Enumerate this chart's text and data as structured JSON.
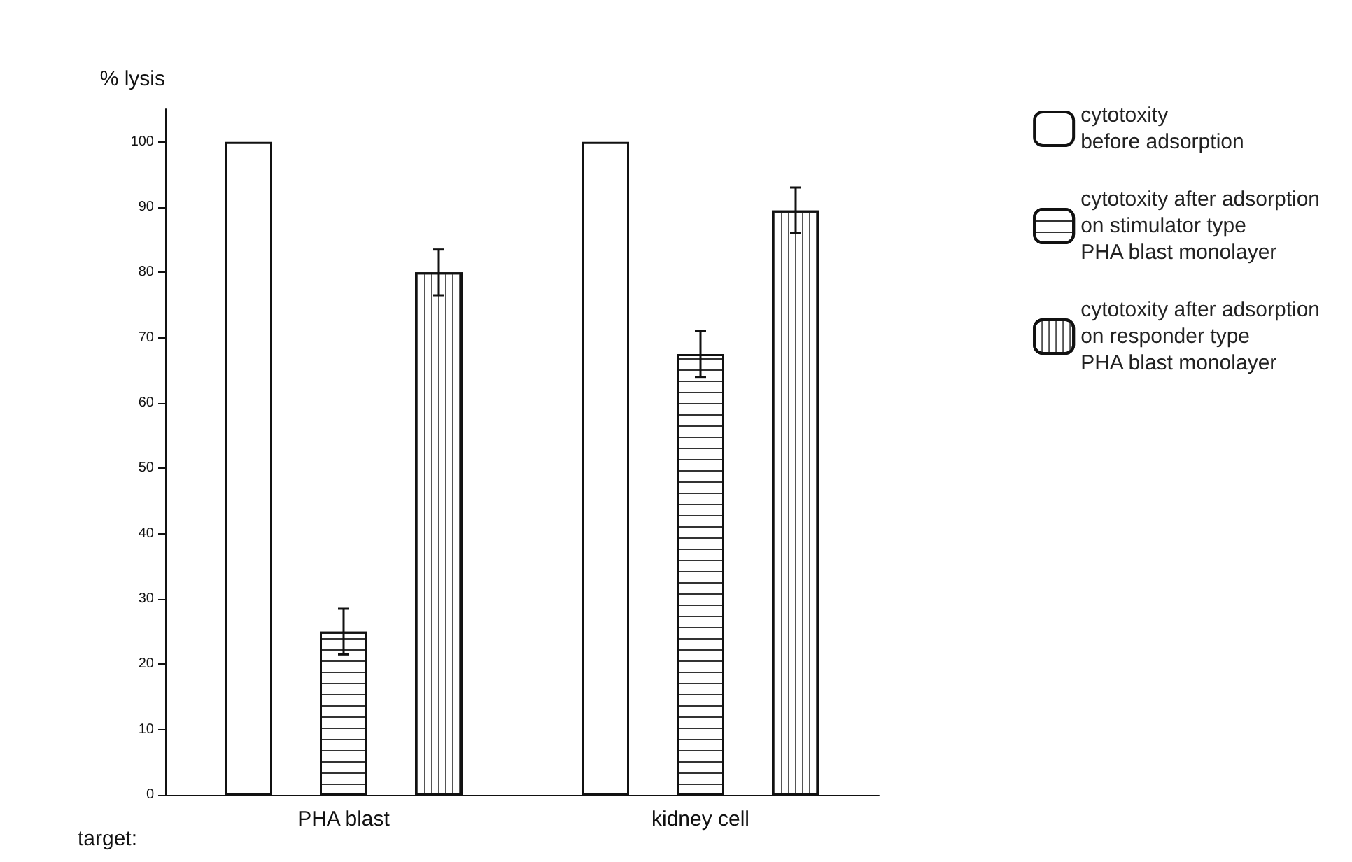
{
  "chart_data": {
    "type": "bar",
    "ylabel": "% lysis",
    "xlabel": "target:",
    "categories": [
      "PHA blast",
      "kidney cell"
    ],
    "series": [
      {
        "name": "cytotoxity\nbefore adsorption",
        "color": "#ffffff",
        "values": [
          100,
          100
        ]
      },
      {
        "name": "cytotoxity after adsorption\non stimulator type\nPHA blast monolayer",
        "color": "#ffffff",
        "values": [
          25,
          67.5
        ],
        "errors": [
          3.5,
          3.5
        ]
      },
      {
        "name": "cytotoxity after adsorption\non responder type\nPHA blast monolayer",
        "color": "#ffffff",
        "values": [
          80,
          89.5
        ],
        "errors": [
          3.5,
          3.5
        ]
      }
    ],
    "ylim": [
      0,
      105
    ],
    "yticks": [
      0,
      10,
      20,
      30,
      40,
      50,
      60,
      70,
      80,
      90,
      100
    ],
    "grid": false,
    "legend": "top right"
  }
}
